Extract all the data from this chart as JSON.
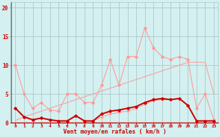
{
  "x": [
    0,
    1,
    2,
    3,
    4,
    5,
    6,
    7,
    8,
    9,
    10,
    11,
    12,
    13,
    14,
    15,
    16,
    17,
    18,
    19,
    20,
    21,
    22,
    23
  ],
  "line_gust_light": [
    10.0,
    5.0,
    2.5,
    3.5,
    2.2,
    2.0,
    5.0,
    5.0,
    3.5,
    3.5,
    6.5,
    11.0,
    6.5,
    11.5,
    11.5,
    16.5,
    13.0,
    11.5,
    11.0,
    11.5,
    11.0,
    2.5,
    5.0,
    0.5
  ],
  "line_trend": [
    0.4,
    1.0,
    1.5,
    2.0,
    2.5,
    3.0,
    3.5,
    4.0,
    4.5,
    5.0,
    5.5,
    6.0,
    6.5,
    7.0,
    7.5,
    8.0,
    8.5,
    9.0,
    9.5,
    10.0,
    10.5,
    10.5,
    10.5,
    5.0
  ],
  "line_mean_light": [
    2.5,
    1.0,
    0.5,
    0.8,
    0.5,
    0.3,
    0.3,
    1.2,
    0.3,
    0.3,
    1.0,
    1.5,
    1.8,
    2.0,
    2.5,
    3.2,
    3.8,
    4.0,
    4.0,
    4.2,
    3.0,
    0.3,
    0.3,
    0.3
  ],
  "line_mean_dark": [
    2.5,
    1.0,
    0.5,
    0.8,
    0.5,
    0.3,
    0.3,
    1.2,
    0.3,
    0.3,
    1.5,
    2.0,
    2.2,
    2.5,
    2.8,
    3.5,
    4.0,
    4.2,
    4.0,
    4.2,
    3.0,
    0.3,
    0.3,
    0.3
  ],
  "background_color": "#d4f0f0",
  "grid_color": "#a8c8c8",
  "line_color_dark": "#cc0000",
  "line_color_light": "#ff9999",
  "xlabel": "Vent moyen/en rafales ( km/h )",
  "yticks": [
    0,
    5,
    10,
    15,
    20
  ],
  "ylim": [
    0,
    21
  ],
  "xlim": [
    -0.5,
    23.5
  ]
}
